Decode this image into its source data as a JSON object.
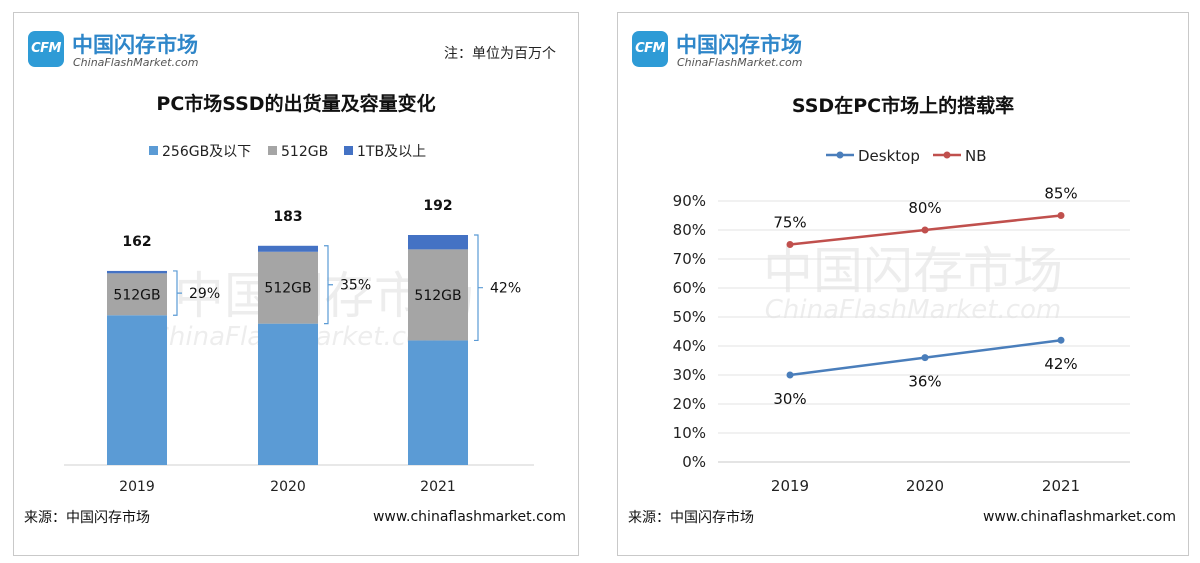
{
  "left_panel": {
    "logo_cn": "中国闪存市场",
    "logo_en": "ChinaFlashMarket.com",
    "logo_badge": "CFM",
    "note": "注：单位为百万个",
    "source": "来源：中国闪存市场",
    "url": "www.chinaflashmarket.com",
    "watermark_cn": "中国闪存市场",
    "watermark_en": "ChinaFlashMarket.com"
  },
  "right_panel": {
    "logo_cn": "中国闪存市场",
    "logo_en": "ChinaFlashMarket.com",
    "logo_badge": "CFM",
    "source": "来源：中国闪存市场",
    "url": "www.chinaflashmarket.com",
    "watermark_cn": "中国闪存市场",
    "watermark_en": "ChinaFlashMarket.com"
  },
  "colors": {
    "s256": "#5b9bd5",
    "s512": "#a5a5a5",
    "s1tb": "#4472c4",
    "desktop": "#4a7ebb",
    "nb": "#c0504d",
    "bracket": "#5b9bd5"
  },
  "chart_data": [
    {
      "type": "bar",
      "stacked": true,
      "title": "PC市场SSD的出货量及容量变化",
      "categories": [
        "2019",
        "2020",
        "2021"
      ],
      "series": [
        {
          "name": "256GB及以下",
          "values": [
            125,
            118,
            104
          ]
        },
        {
          "name": "512GB",
          "values": [
            35,
            60,
            76
          ]
        },
        {
          "name": "1TB及以上",
          "values": [
            2,
            5,
            12
          ]
        }
      ],
      "totals": [
        162,
        183,
        192
      ],
      "segment_labels": [
        "512GB",
        "512GB",
        "512GB"
      ],
      "share_labels": [
        "29%",
        "35%",
        "42%"
      ],
      "ylim": [
        0,
        192
      ],
      "legend": "top"
    },
    {
      "type": "line",
      "title": "SSD在PC市场上的搭载率",
      "categories": [
        "2019",
        "2020",
        "2021"
      ],
      "series": [
        {
          "name": "Desktop",
          "values": [
            30,
            36,
            42
          ],
          "labels": [
            "30%",
            "36%",
            "42%"
          ]
        },
        {
          "name": "NB",
          "values": [
            75,
            80,
            85
          ],
          "labels": [
            "75%",
            "80%",
            "85%"
          ]
        }
      ],
      "yticks": [
        "0%",
        "10%",
        "20%",
        "30%",
        "40%",
        "50%",
        "60%",
        "70%",
        "80%",
        "90%"
      ],
      "ylim": [
        0,
        90
      ],
      "legend": "top",
      "grid": true
    }
  ]
}
